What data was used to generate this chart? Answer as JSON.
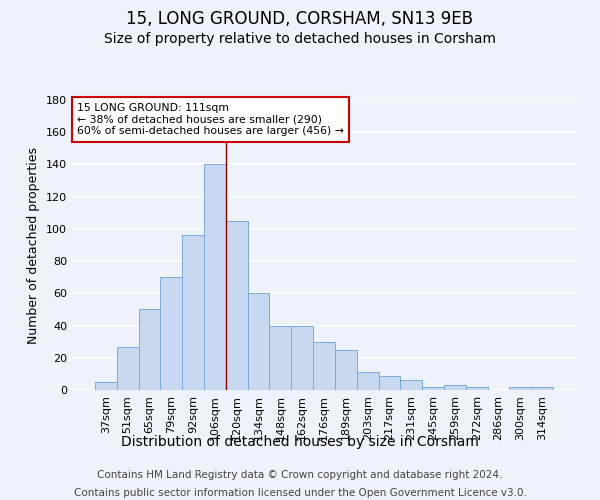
{
  "title1": "15, LONG GROUND, CORSHAM, SN13 9EB",
  "title2": "Size of property relative to detached houses in Corsham",
  "xlabel": "Distribution of detached houses by size in Corsham",
  "ylabel": "Number of detached properties",
  "categories": [
    "37sqm",
    "51sqm",
    "65sqm",
    "79sqm",
    "92sqm",
    "106sqm",
    "120sqm",
    "134sqm",
    "148sqm",
    "162sqm",
    "176sqm",
    "189sqm",
    "203sqm",
    "217sqm",
    "231sqm",
    "245sqm",
    "259sqm",
    "272sqm",
    "286sqm",
    "300sqm",
    "314sqm"
  ],
  "values": [
    5,
    27,
    50,
    70,
    96,
    140,
    105,
    60,
    40,
    40,
    30,
    25,
    11,
    9,
    6,
    2,
    3,
    2,
    0,
    2,
    2
  ],
  "bar_color": "#c8d8f0",
  "bar_edge_color": "#7aaadc",
  "vline_x": 5.5,
  "vline_color": "#8b0000",
  "annotation_text": "15 LONG GROUND: 111sqm\n← 38% of detached houses are smaller (290)\n60% of semi-detached houses are larger (456) →",
  "annotation_box_color": "#ffffff",
  "annotation_box_edge": "#cc0000",
  "ylim": [
    0,
    180
  ],
  "yticks": [
    0,
    20,
    40,
    60,
    80,
    100,
    120,
    140,
    160,
    180
  ],
  "footer1": "Contains HM Land Registry data © Crown copyright and database right 2024.",
  "footer2": "Contains public sector information licensed under the Open Government Licence v3.0.",
  "background_color": "#eef2fa",
  "grid_color": "#ffffff",
  "title1_fontsize": 12,
  "title2_fontsize": 10,
  "tick_fontsize": 8,
  "ylabel_fontsize": 9,
  "xlabel_fontsize": 10,
  "footer_fontsize": 7.5
}
